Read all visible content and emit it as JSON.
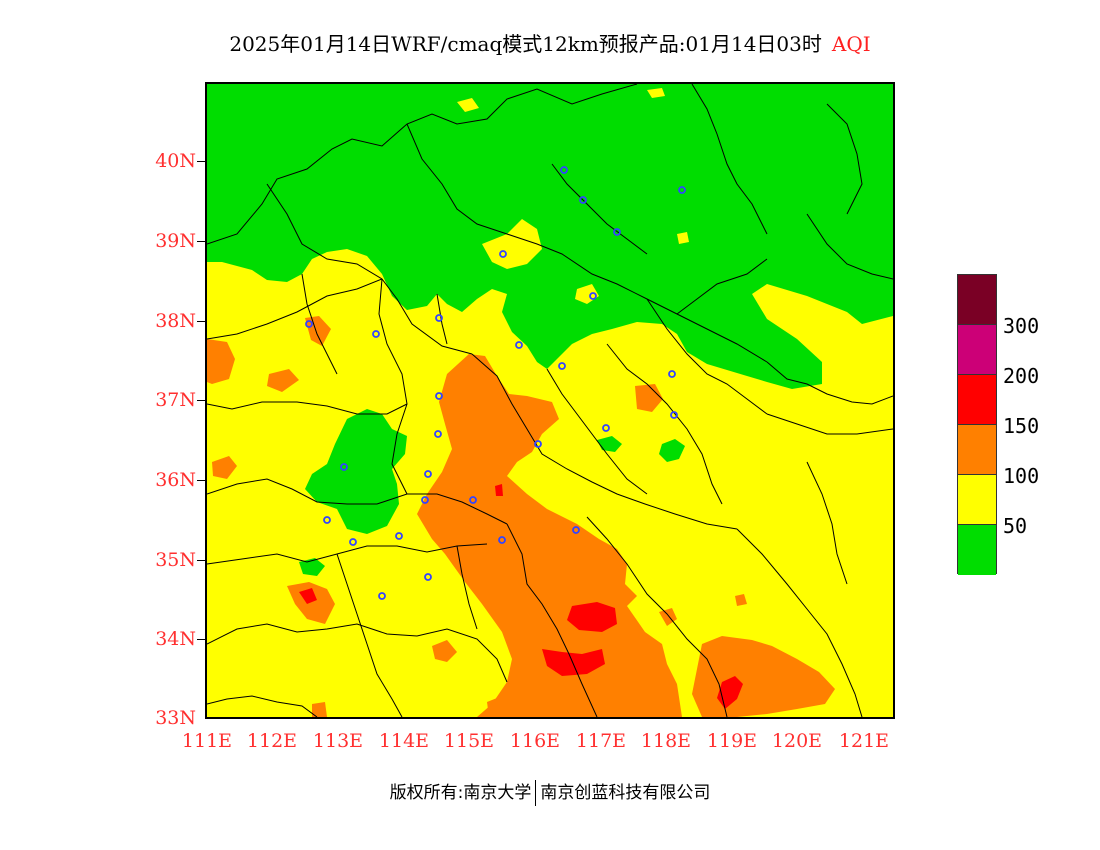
{
  "title": {
    "main": "2025年01月14日WRF/cmaq模式12km预报产品:01月14日03时",
    "variable": "AQI"
  },
  "map": {
    "lat_labels": [
      "40N",
      "39N",
      "38N",
      "37N",
      "36N",
      "35N",
      "34N",
      "33N"
    ],
    "lon_labels": [
      "111E",
      "112E",
      "113E",
      "114E",
      "115E",
      "116E",
      "117E",
      "118E",
      "119E",
      "120E",
      "121E"
    ],
    "colors": {
      "good": "#00dd00",
      "moderate": "#ffff00",
      "sensitive": "#ff8000",
      "unhealthy": "#ff0000",
      "very_unhealthy": "#cc0077",
      "hazardous": "#7a0025",
      "boundary": "#000000",
      "city_marker": "#3344ff"
    }
  },
  "legend": {
    "labels": [
      "300",
      "200",
      "150",
      "100",
      "50"
    ],
    "swatches": [
      "#7a0025",
      "#cc0077",
      "#ff0000",
      "#ff8000",
      "#ffff00",
      "#00dd00"
    ]
  },
  "footer": {
    "copyright": "版权所有:南京大学",
    "company": "南京创蓝科技有限公司"
  }
}
